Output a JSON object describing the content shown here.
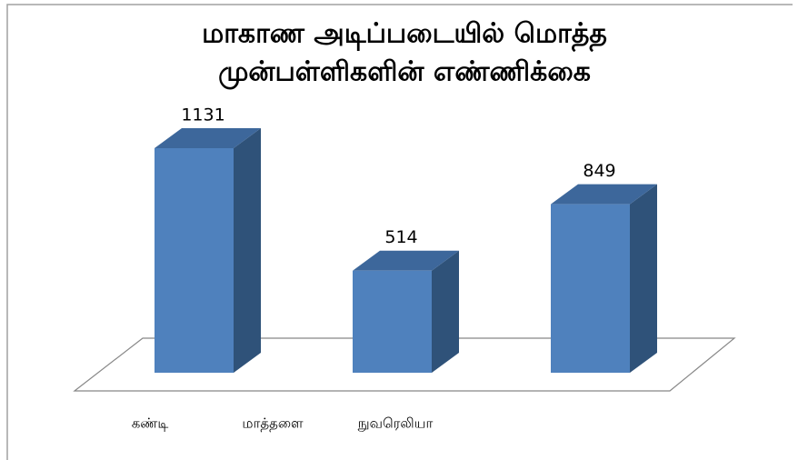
{
  "chart_data": {
    "type": "bar3d",
    "title": [
      "மாகாண அடிப்படையில் மொத்த",
      "முன்பள்ளிகளின் எண்ணிக்கை"
    ],
    "categories": [
      "கண்டி",
      "மாத்தளை",
      "நுவரெலியா"
    ],
    "values": [
      1131,
      514,
      849
    ],
    "color": "#4f81bd"
  }
}
